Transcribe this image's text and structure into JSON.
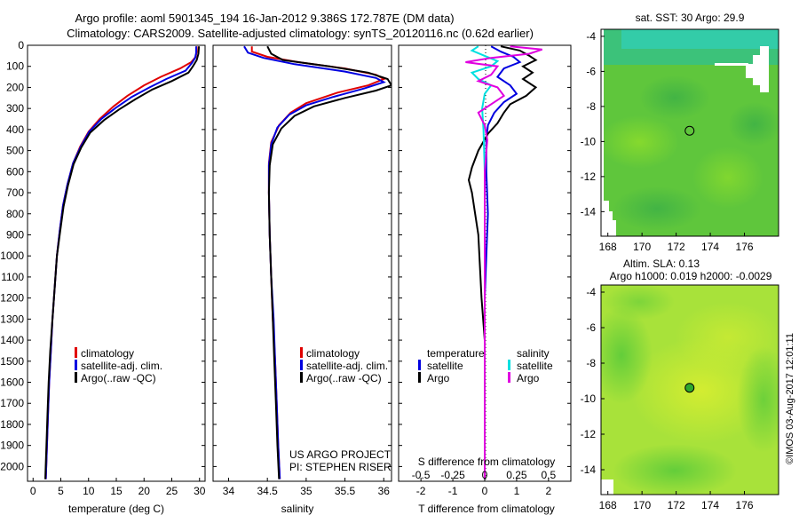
{
  "header": {
    "line1": "Argo profile: aoml 5901345_194 16-Jan-2012 9.386S 172.787E (DM data)",
    "line2": "Climatology: CARS2009. Satellite-adjusted climatology: synTS_20120116.nc (0.62d earlier)"
  },
  "depth_ticks": [
    "0",
    "100",
    "200",
    "300",
    "400",
    "500",
    "600",
    "700",
    "800",
    "900",
    "1000",
    "1100",
    "1200",
    "1300",
    "1400",
    "1500",
    "1600",
    "1700",
    "1800",
    "1900",
    "2000"
  ],
  "credit": {
    "project": "US ARGO PROJECT",
    "pi": "PI: STEPHEN RISER",
    "stamp": "©IMOS 03-Aug-2017 12:01:11"
  },
  "colors": {
    "climatology": "#e00000",
    "satellite": "#0000e0",
    "argo": "#000000",
    "cyan": "#00e0e0",
    "magenta": "#e000e0"
  },
  "chart_data": [
    {
      "type": "line",
      "name": "temperature",
      "xlabel": "temperature (deg C)",
      "xlim": [
        -1,
        31
      ],
      "ylim": [
        2070,
        0
      ],
      "xticks": [
        "0",
        "5",
        "10",
        "15",
        "20",
        "25",
        "30"
      ],
      "legend": {
        "entries": [
          "climatology",
          "satellite-adj. clim.",
          "Argo(..raw -QC)"
        ],
        "placement": "lower-left"
      },
      "series": [
        {
          "key": "climatology",
          "color": "#e00000",
          "points": [
            [
              29.5,
              5
            ],
            [
              29.5,
              30
            ],
            [
              29.3,
              55
            ],
            [
              28.5,
              80
            ],
            [
              26.5,
              110
            ],
            [
              23,
              150
            ],
            [
              20,
              190
            ],
            [
              17,
              240
            ],
            [
              14.5,
              290
            ],
            [
              12,
              350
            ],
            [
              10,
              410
            ],
            [
              8.5,
              480
            ],
            [
              7.2,
              560
            ],
            [
              6.2,
              660
            ],
            [
              5.4,
              760
            ],
            [
              4.8,
              880
            ],
            [
              4.3,
              1000
            ],
            [
              3.9,
              1150
            ],
            [
              3.5,
              1300
            ],
            [
              3.2,
              1450
            ],
            [
              2.9,
              1600
            ],
            [
              2.7,
              1750
            ],
            [
              2.5,
              1900
            ],
            [
              2.3,
              2060
            ]
          ]
        },
        {
          "key": "satellite-adj. clim.",
          "color": "#0000e0",
          "points": [
            [
              29.4,
              5
            ],
            [
              29.4,
              35
            ],
            [
              29.2,
              60
            ],
            [
              28.6,
              85
            ],
            [
              27.5,
              120
            ],
            [
              24,
              160
            ],
            [
              21,
              200
            ],
            [
              17.8,
              245
            ],
            [
              15,
              295
            ],
            [
              12.3,
              350
            ],
            [
              10.1,
              410
            ],
            [
              8.6,
              480
            ],
            [
              7.2,
              560
            ],
            [
              6.2,
              660
            ],
            [
              5.4,
              760
            ],
            [
              4.8,
              880
            ],
            [
              4.3,
              1000
            ],
            [
              3.9,
              1150
            ],
            [
              3.5,
              1300
            ],
            [
              3.2,
              1450
            ],
            [
              2.9,
              1600
            ],
            [
              2.7,
              1750
            ],
            [
              2.5,
              1900
            ],
            [
              2.3,
              2060
            ]
          ]
        },
        {
          "key": "Argo(..raw -QC)",
          "color": "#000000",
          "points": [
            [
              29.9,
              5
            ],
            [
              29.8,
              40
            ],
            [
              29.5,
              70
            ],
            [
              28.8,
              100
            ],
            [
              28,
              130
            ],
            [
              25,
              170
            ],
            [
              21.5,
              210
            ],
            [
              18.5,
              255
            ],
            [
              15.5,
              305
            ],
            [
              12.8,
              355
            ],
            [
              10.3,
              415
            ],
            [
              8.7,
              485
            ],
            [
              7.3,
              565
            ],
            [
              6.3,
              665
            ],
            [
              5.5,
              765
            ],
            [
              4.9,
              880
            ],
            [
              4.3,
              1000
            ],
            [
              3.9,
              1150
            ],
            [
              3.5,
              1300
            ],
            [
              3.1,
              1450
            ],
            [
              2.8,
              1600
            ],
            [
              2.6,
              1750
            ],
            [
              2.4,
              1900
            ],
            [
              2.2,
              2060
            ]
          ]
        }
      ]
    },
    {
      "type": "line",
      "name": "salinity",
      "xlabel": "salinity",
      "xlim": [
        33.8,
        36.1
      ],
      "ylim": [
        2070,
        0
      ],
      "xticks": [
        "34",
        "34.5",
        "35",
        "35.5",
        "36"
      ],
      "legend": {
        "entries": [
          "climatology",
          "satellite-adj. clim.",
          "Argo(..raw -QC)"
        ],
        "placement": "lower-center"
      },
      "series": [
        {
          "key": "climatology",
          "color": "#e00000",
          "points": [
            [
              34.3,
              5
            ],
            [
              34.3,
              30
            ],
            [
              34.5,
              55
            ],
            [
              34.9,
              80
            ],
            [
              35.5,
              110
            ],
            [
              35.9,
              140
            ],
            [
              36.0,
              160
            ],
            [
              35.8,
              190
            ],
            [
              35.4,
              225
            ],
            [
              35.0,
              275
            ],
            [
              34.8,
              320
            ],
            [
              34.65,
              380
            ],
            [
              34.55,
              460
            ],
            [
              34.52,
              560
            ],
            [
              34.52,
              700
            ],
            [
              34.53,
              900
            ],
            [
              34.55,
              1100
            ],
            [
              34.57,
              1300
            ],
            [
              34.6,
              1500
            ],
            [
              34.62,
              1700
            ],
            [
              34.64,
              1900
            ],
            [
              34.66,
              2060
            ]
          ]
        },
        {
          "key": "satellite-adj. clim.",
          "color": "#0000e0",
          "points": [
            [
              34.2,
              5
            ],
            [
              34.25,
              35
            ],
            [
              34.45,
              60
            ],
            [
              34.85,
              90
            ],
            [
              35.5,
              125
            ],
            [
              35.9,
              155
            ],
            [
              36.0,
              175
            ],
            [
              35.75,
              205
            ],
            [
              35.35,
              245
            ],
            [
              35.0,
              285
            ],
            [
              34.78,
              330
            ],
            [
              34.63,
              390
            ],
            [
              34.55,
              470
            ],
            [
              34.52,
              570
            ],
            [
              34.52,
              700
            ],
            [
              34.53,
              900
            ],
            [
              34.55,
              1100
            ],
            [
              34.58,
              1300
            ],
            [
              34.6,
              1500
            ],
            [
              34.62,
              1700
            ],
            [
              34.64,
              1900
            ],
            [
              34.66,
              2060
            ]
          ]
        },
        {
          "key": "Argo(..raw -QC)",
          "color": "#000000",
          "points": [
            [
              34.5,
              5
            ],
            [
              34.55,
              40
            ],
            [
              34.7,
              70
            ],
            [
              35.3,
              100
            ],
            [
              35.8,
              130
            ],
            [
              36.05,
              160
            ],
            [
              36.1,
              190
            ],
            [
              35.9,
              215
            ],
            [
              35.5,
              250
            ],
            [
              35.1,
              290
            ],
            [
              34.85,
              335
            ],
            [
              34.68,
              395
            ],
            [
              34.57,
              470
            ],
            [
              34.53,
              570
            ],
            [
              34.52,
              700
            ],
            [
              34.53,
              900
            ],
            [
              34.55,
              1100
            ],
            [
              34.57,
              1300
            ],
            [
              34.59,
              1500
            ],
            [
              34.61,
              1700
            ],
            [
              34.63,
              1900
            ],
            [
              34.65,
              2060
            ]
          ]
        }
      ]
    },
    {
      "type": "line",
      "name": "difference from climatology",
      "xlabel_top": "S difference from climatology",
      "xlabel": "T difference from climatology",
      "ylim": [
        2070,
        0
      ],
      "t_xlim": [
        -2.7,
        2.7
      ],
      "s_xlim": [
        -0.675,
        0.675
      ],
      "t_xticks": [
        "-2",
        "-1",
        "0",
        "1",
        "2"
      ],
      "s_xticks": [
        "-0.5",
        "-0.25",
        "0",
        "0.25",
        "0.5"
      ],
      "legend": {
        "temperature_title": "temperature",
        "salinity_title": "salinity",
        "t_entries": [
          "satellite",
          "Argo"
        ],
        "s_entries": [
          "satellite",
          "Argo"
        ],
        "placement": "lower-center"
      },
      "series": [
        {
          "key": "T satellite",
          "color": "#0000e0",
          "axis": "T",
          "points": [
            [
              0.2,
              5
            ],
            [
              0.5,
              30
            ],
            [
              0.9,
              55
            ],
            [
              1.1,
              80
            ],
            [
              0.6,
              110
            ],
            [
              0.4,
              150
            ],
            [
              0.8,
              190
            ],
            [
              1.0,
              230
            ],
            [
              0.6,
              270
            ],
            [
              0.3,
              320
            ],
            [
              0.1,
              380
            ],
            [
              0.05,
              450
            ],
            [
              0.05,
              600
            ],
            [
              0.1,
              800
            ],
            [
              0.05,
              1000
            ],
            [
              0.0,
              1200
            ],
            [
              0.0,
              1500
            ],
            [
              0.0,
              2060
            ]
          ]
        },
        {
          "key": "T Argo",
          "color": "#000000",
          "axis": "T",
          "points": [
            [
              0.5,
              5
            ],
            [
              1.1,
              25
            ],
            [
              1.4,
              50
            ],
            [
              1.6,
              70
            ],
            [
              1.2,
              100
            ],
            [
              1.5,
              130
            ],
            [
              1.2,
              160
            ],
            [
              1.6,
              200
            ],
            [
              1.3,
              240
            ],
            [
              0.8,
              280
            ],
            [
              0.6,
              320
            ],
            [
              0.4,
              370
            ],
            [
              0.1,
              420
            ],
            [
              -0.2,
              500
            ],
            [
              -0.4,
              580
            ],
            [
              -0.5,
              640
            ],
            [
              -0.4,
              700
            ],
            [
              -0.3,
              800
            ],
            [
              -0.2,
              900
            ],
            [
              -0.15,
              1050
            ],
            [
              -0.1,
              1200
            ],
            [
              0.0,
              1400
            ],
            [
              0.0,
              1600
            ],
            [
              0.0,
              2060
            ]
          ]
        },
        {
          "key": "S satellite",
          "color": "#00e0e0",
          "axis": "S",
          "points": [
            [
              -0.05,
              5
            ],
            [
              -0.1,
              25
            ],
            [
              0.0,
              50
            ],
            [
              0.1,
              75
            ],
            [
              0.05,
              100
            ],
            [
              -0.1,
              130
            ],
            [
              -0.05,
              160
            ],
            [
              0.05,
              190
            ],
            [
              0.0,
              230
            ],
            [
              -0.02,
              300
            ],
            [
              -0.01,
              400
            ],
            [
              0.0,
              600
            ],
            [
              0.0,
              900
            ],
            [
              0.0,
              1200
            ],
            [
              0.0,
              1500
            ],
            [
              0.0,
              2060
            ]
          ]
        },
        {
          "key": "S Argo",
          "color": "#e000e0",
          "axis": "S",
          "points": [
            [
              0.2,
              5
            ],
            [
              0.45,
              20
            ],
            [
              0.35,
              40
            ],
            [
              0.05,
              60
            ],
            [
              -0.15,
              80
            ],
            [
              0.1,
              100
            ],
            [
              0.05,
              140
            ],
            [
              -0.05,
              170
            ],
            [
              0.1,
              200
            ],
            [
              0.15,
              240
            ],
            [
              0.05,
              280
            ],
            [
              -0.05,
              320
            ],
            [
              0.0,
              380
            ],
            [
              0.02,
              450
            ],
            [
              0.0,
              600
            ],
            [
              0.0,
              900
            ],
            [
              0.0,
              1200
            ],
            [
              0.0,
              1500
            ],
            [
              0.0,
              2060
            ]
          ]
        }
      ]
    },
    {
      "type": "heatmap",
      "name": "sst_map",
      "title": "sat. SST: 30 Argo: 29.9",
      "xlim": [
        167.6,
        178.0
      ],
      "ylim": [
        -15.4,
        -3.6
      ],
      "xticks": [
        "168",
        "170",
        "172",
        "174",
        "176"
      ],
      "yticks": [
        "-4",
        "-6",
        "-8",
        "-10",
        "-12",
        "-14"
      ],
      "argo_position": {
        "lon": 172.787,
        "lat": -9.386
      }
    },
    {
      "type": "heatmap",
      "name": "sla_map",
      "title": "Altim. SLA: 0.13",
      "subtitle": "Argo h1000: 0.019 h2000: -0.0029",
      "xlim": [
        167.6,
        178.0
      ],
      "ylim": [
        -15.4,
        -3.6
      ],
      "xticks": [
        "168",
        "170",
        "172",
        "174",
        "176"
      ],
      "yticks": [
        "-4",
        "-6",
        "-8",
        "-10",
        "-12",
        "-14"
      ],
      "argo_position": {
        "lon": 172.787,
        "lat": -9.386
      }
    }
  ]
}
